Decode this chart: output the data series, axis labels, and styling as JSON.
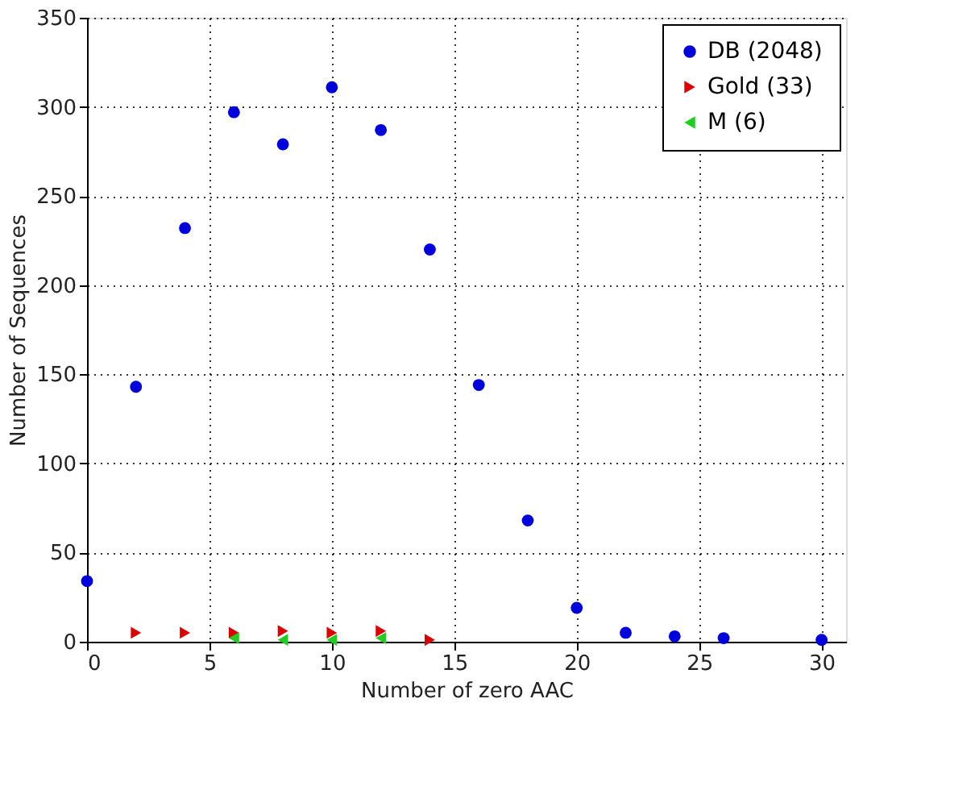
{
  "chart_data": {
    "type": "scatter",
    "xlabel": "Number of zero AAC",
    "ylabel": "Number of Sequences",
    "xlim": [
      0,
      31
    ],
    "xticks": [
      0,
      5,
      10,
      15,
      20,
      25,
      30
    ],
    "ylim": [
      0,
      350
    ],
    "yticks": [
      0,
      50,
      100,
      150,
      200,
      250,
      300,
      350
    ],
    "grid": true,
    "legend": "top right",
    "series": [
      {
        "name": "DB (2048)",
        "color": "#0000dd",
        "marker": "circle",
        "x": [
          0,
          2,
          4,
          6,
          8,
          10,
          12,
          14,
          16,
          18,
          20,
          22,
          24,
          26,
          30
        ],
        "values": [
          34,
          143,
          232,
          297,
          279,
          311,
          287,
          220,
          144,
          68,
          19,
          5,
          3,
          2,
          1
        ]
      },
      {
        "name": "Gold (33)",
        "color": "#dd0000",
        "marker": "triangle",
        "x": [
          2,
          4,
          6,
          8,
          10,
          12,
          14
        ],
        "values": [
          5,
          5,
          5,
          6,
          5,
          6,
          1
        ]
      },
      {
        "name": "M (6)",
        "color": "#22cc22",
        "marker": "triangle",
        "x": [
          6,
          8,
          10,
          12
        ],
        "values": [
          2,
          1,
          1,
          2
        ]
      }
    ]
  }
}
